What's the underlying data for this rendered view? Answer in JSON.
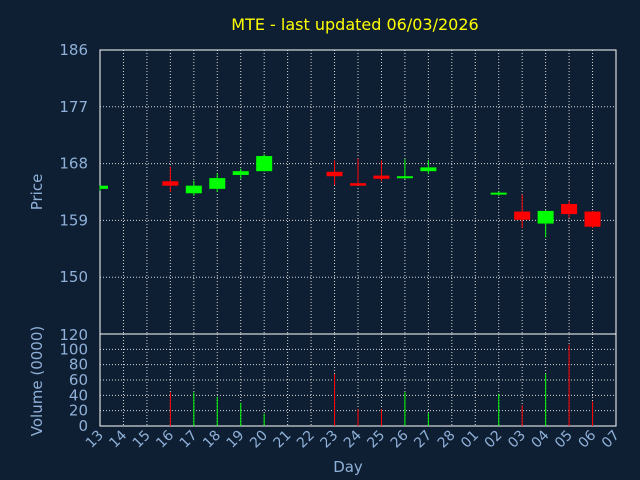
{
  "chart_data": {
    "type": "candlestick",
    "title": "MTE - last updated 06/03/2026",
    "xlabel": "Day",
    "price_panel": {
      "ylabel": "Price",
      "yticks": [
        150,
        159,
        168,
        177,
        186
      ],
      "ylim": [
        141,
        186
      ]
    },
    "volume_panel": {
      "ylabel": "Volume (0000)",
      "yticks": [
        0,
        20,
        40,
        60,
        80,
        100
      ],
      "ylim": [
        0,
        120
      ],
      "top_label": "120"
    },
    "x_tick_labels": [
      "13",
      "14",
      "15",
      "16",
      "17",
      "18",
      "19",
      "20",
      "21",
      "22",
      "23",
      "24",
      "25",
      "26",
      "27",
      "28",
      "01",
      "02",
      "03",
      "04",
      "05",
      "06",
      "07"
    ],
    "grid": true,
    "colors": {
      "background": "#0f1f33",
      "up": "#00ff00",
      "down": "#ff0000",
      "title": "#ffff00",
      "axis_text": "#8fb0d8",
      "frame": "#ffffff"
    },
    "candles": [
      {
        "day": "13",
        "open": 164.0,
        "high": 164.5,
        "low": 163.7,
        "close": 164.5,
        "volume": 0
      },
      {
        "day": "16",
        "open": 165.2,
        "high": 167.5,
        "low": 163.5,
        "close": 164.5,
        "volume": 44
      },
      {
        "day": "17",
        "open": 163.3,
        "high": 165.3,
        "low": 162.9,
        "close": 164.5,
        "volume": 44
      },
      {
        "day": "18",
        "open": 164.0,
        "high": 166.5,
        "low": 163.5,
        "close": 165.7,
        "volume": 38
      },
      {
        "day": "19",
        "open": 166.2,
        "high": 167.2,
        "low": 165.6,
        "close": 166.8,
        "volume": 30
      },
      {
        "day": "20",
        "open": 166.8,
        "high": 169.5,
        "low": 166.8,
        "close": 169.2,
        "volume": 16
      },
      {
        "day": "23",
        "open": 166.7,
        "high": 168.5,
        "low": 164.6,
        "close": 166.0,
        "volume": 68
      },
      {
        "day": "24",
        "open": 164.9,
        "high": 168.8,
        "low": 164.6,
        "close": 164.5,
        "volume": 22
      },
      {
        "day": "25",
        "open": 166.1,
        "high": 168.5,
        "low": 165.2,
        "close": 165.6,
        "volume": 22
      },
      {
        "day": "26",
        "open": 165.9,
        "high": 168.7,
        "low": 165.6,
        "close": 166.0,
        "volume": 44
      },
      {
        "day": "27",
        "open": 166.8,
        "high": 168.6,
        "low": 166.4,
        "close": 167.4,
        "volume": 17
      },
      {
        "day": "02",
        "open": 163.2,
        "high": 163.6,
        "low": 162.9,
        "close": 163.4,
        "volume": 42
      },
      {
        "day": "03",
        "open": 160.4,
        "high": 163.1,
        "low": 157.8,
        "close": 159.1,
        "volume": 27
      },
      {
        "day": "04",
        "open": 158.5,
        "high": 160.6,
        "low": 156.3,
        "close": 160.5,
        "volume": 68
      },
      {
        "day": "05",
        "open": 161.6,
        "high": 162.1,
        "low": 159.4,
        "close": 160.0,
        "volume": 106
      },
      {
        "day": "06",
        "open": 160.4,
        "high": 160.5,
        "low": 157.8,
        "close": 158.0,
        "volume": 32
      }
    ]
  }
}
